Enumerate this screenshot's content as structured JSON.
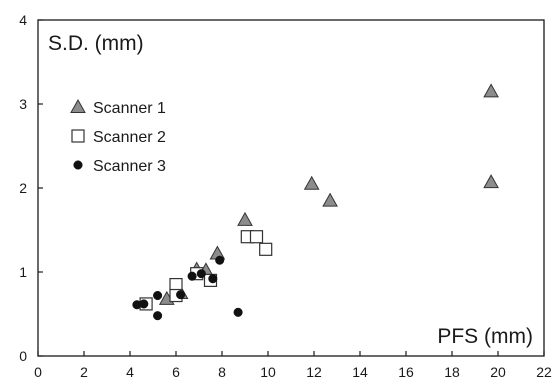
{
  "chart_data": {
    "type": "scatter",
    "xlabel": "PFS (mm)",
    "ylabel": "S.D. (mm)",
    "xlim": [
      0,
      22
    ],
    "ylim": [
      0,
      4
    ],
    "x_ticks": [
      0,
      2,
      4,
      6,
      8,
      10,
      12,
      14,
      16,
      18,
      20,
      22
    ],
    "y_ticks": [
      0,
      1,
      2,
      3,
      4
    ],
    "grid": false,
    "legend_position": "left",
    "series": [
      {
        "name": "Scanner 1",
        "marker": "triangle",
        "color": "#8c8c8c",
        "points": [
          [
            5.6,
            0.68
          ],
          [
            6.2,
            0.75
          ],
          [
            6.9,
            1.03
          ],
          [
            7.3,
            1.02
          ],
          [
            7.8,
            1.22
          ],
          [
            9.0,
            1.62
          ],
          [
            11.9,
            2.05
          ],
          [
            12.7,
            1.85
          ],
          [
            19.7,
            3.15
          ],
          [
            19.7,
            2.07
          ]
        ]
      },
      {
        "name": "Scanner 2",
        "marker": "square",
        "color": "#ffffff",
        "points": [
          [
            4.7,
            0.62
          ],
          [
            6.0,
            0.85
          ],
          [
            6.0,
            0.72
          ],
          [
            6.9,
            0.98
          ],
          [
            7.5,
            0.9
          ],
          [
            9.1,
            1.42
          ],
          [
            9.5,
            1.42
          ],
          [
            9.9,
            1.27
          ]
        ]
      },
      {
        "name": "Scanner 3",
        "marker": "circle",
        "color": "#111111",
        "points": [
          [
            4.3,
            0.61
          ],
          [
            4.6,
            0.62
          ],
          [
            5.2,
            0.72
          ],
          [
            5.2,
            0.48
          ],
          [
            6.2,
            0.73
          ],
          [
            6.7,
            0.95
          ],
          [
            7.1,
            0.98
          ],
          [
            7.6,
            0.92
          ],
          [
            7.9,
            1.14
          ],
          [
            8.7,
            0.52
          ]
        ]
      }
    ]
  }
}
